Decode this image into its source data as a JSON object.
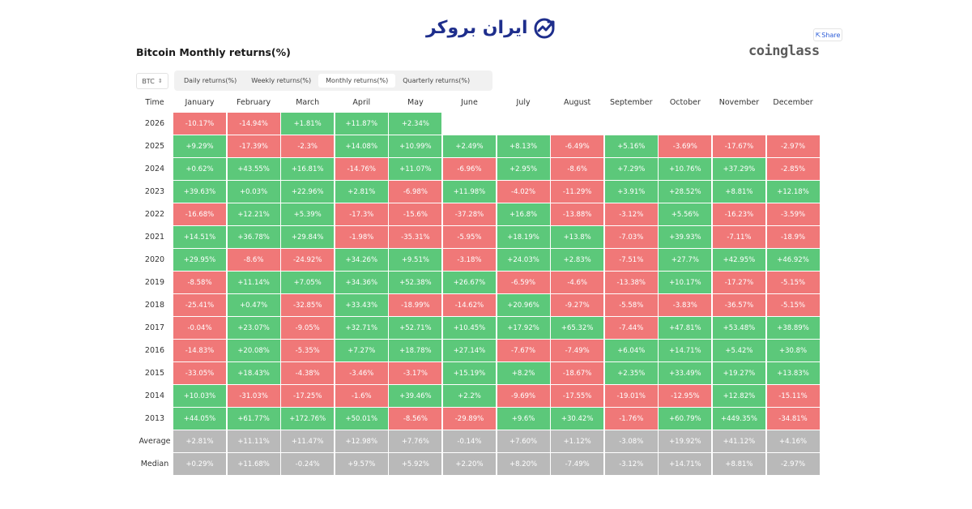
{
  "brand": {
    "name": "ایران بروکر"
  },
  "share_label": "Share",
  "page": {
    "title": "Bitcoin Monthly returns(%)",
    "provider": "coinglass"
  },
  "asset_selector": {
    "value": "BTC"
  },
  "tabs": [
    {
      "label": "Daily returns(%)",
      "active": false
    },
    {
      "label": "Weekly returns(%)",
      "active": false
    },
    {
      "label": "Monthly returns(%)",
      "active": true
    },
    {
      "label": "Quarterly returns(%)",
      "active": false
    }
  ],
  "colors": {
    "positive": "#5cc87a",
    "negative": "#f07878",
    "summary": "#b9b9b9",
    "brand": "#1e2e8c"
  },
  "table": {
    "columns": [
      "Time",
      "January",
      "February",
      "March",
      "April",
      "May",
      "June",
      "July",
      "August",
      "September",
      "October",
      "November",
      "December"
    ],
    "rows": [
      {
        "label": "2026",
        "values": [
          "-10.17%",
          "-14.94%",
          "+1.81%",
          "+11.87%",
          "+2.34%",
          "",
          "",
          "",
          "",
          "",
          "",
          ""
        ]
      },
      {
        "label": "2025",
        "values": [
          "+9.29%",
          "-17.39%",
          "-2.3%",
          "+14.08%",
          "+10.99%",
          "+2.49%",
          "+8.13%",
          "-6.49%",
          "+5.16%",
          "-3.69%",
          "-17.67%",
          "-2.97%"
        ]
      },
      {
        "label": "2024",
        "values": [
          "+0.62%",
          "+43.55%",
          "+16.81%",
          "-14.76%",
          "+11.07%",
          "-6.96%",
          "+2.95%",
          "-8.6%",
          "+7.29%",
          "+10.76%",
          "+37.29%",
          "-2.85%"
        ]
      },
      {
        "label": "2023",
        "values": [
          "+39.63%",
          "+0.03%",
          "+22.96%",
          "+2.81%",
          "-6.98%",
          "+11.98%",
          "-4.02%",
          "-11.29%",
          "+3.91%",
          "+28.52%",
          "+8.81%",
          "+12.18%"
        ]
      },
      {
        "label": "2022",
        "values": [
          "-16.68%",
          "+12.21%",
          "+5.39%",
          "-17.3%",
          "-15.6%",
          "-37.28%",
          "+16.8%",
          "-13.88%",
          "-3.12%",
          "+5.56%",
          "-16.23%",
          "-3.59%"
        ]
      },
      {
        "label": "2021",
        "values": [
          "+14.51%",
          "+36.78%",
          "+29.84%",
          "-1.98%",
          "-35.31%",
          "-5.95%",
          "+18.19%",
          "+13.8%",
          "-7.03%",
          "+39.93%",
          "-7.11%",
          "-18.9%"
        ]
      },
      {
        "label": "2020",
        "values": [
          "+29.95%",
          "-8.6%",
          "-24.92%",
          "+34.26%",
          "+9.51%",
          "-3.18%",
          "+24.03%",
          "+2.83%",
          "-7.51%",
          "+27.7%",
          "+42.95%",
          "+46.92%"
        ]
      },
      {
        "label": "2019",
        "values": [
          "-8.58%",
          "+11.14%",
          "+7.05%",
          "+34.36%",
          "+52.38%",
          "+26.67%",
          "-6.59%",
          "-4.6%",
          "-13.38%",
          "+10.17%",
          "-17.27%",
          "-5.15%"
        ]
      },
      {
        "label": "2018",
        "values": [
          "-25.41%",
          "+0.47%",
          "-32.85%",
          "+33.43%",
          "-18.99%",
          "-14.62%",
          "+20.96%",
          "-9.27%",
          "-5.58%",
          "-3.83%",
          "-36.57%",
          "-5.15%"
        ]
      },
      {
        "label": "2017",
        "values": [
          "-0.04%",
          "+23.07%",
          "-9.05%",
          "+32.71%",
          "+52.71%",
          "+10.45%",
          "+17.92%",
          "+65.32%",
          "-7.44%",
          "+47.81%",
          "+53.48%",
          "+38.89%"
        ]
      },
      {
        "label": "2016",
        "values": [
          "-14.83%",
          "+20.08%",
          "-5.35%",
          "+7.27%",
          "+18.78%",
          "+27.14%",
          "-7.67%",
          "-7.49%",
          "+6.04%",
          "+14.71%",
          "+5.42%",
          "+30.8%"
        ]
      },
      {
        "label": "2015",
        "values": [
          "-33.05%",
          "+18.43%",
          "-4.38%",
          "-3.46%",
          "-3.17%",
          "+15.19%",
          "+8.2%",
          "-18.67%",
          "+2.35%",
          "+33.49%",
          "+19.27%",
          "+13.83%"
        ]
      },
      {
        "label": "2014",
        "values": [
          "+10.03%",
          "-31.03%",
          "-17.25%",
          "-1.6%",
          "+39.46%",
          "+2.2%",
          "-9.69%",
          "-17.55%",
          "-19.01%",
          "-12.95%",
          "+12.82%",
          "-15.11%"
        ]
      },
      {
        "label": "2013",
        "values": [
          "+44.05%",
          "+61.77%",
          "+172.76%",
          "+50.01%",
          "-8.56%",
          "-29.89%",
          "+9.6%",
          "+30.42%",
          "-1.76%",
          "+60.79%",
          "+449.35%",
          "-34.81%"
        ]
      }
    ],
    "summary_rows": [
      {
        "label": "Average",
        "values": [
          "+2.81%",
          "+11.11%",
          "+11.47%",
          "+12.98%",
          "+7.76%",
          "-0.14%",
          "+7.60%",
          "+1.12%",
          "-3.08%",
          "+19.92%",
          "+41.12%",
          "+4.16%"
        ]
      },
      {
        "label": "Median",
        "values": [
          "+0.29%",
          "+11.68%",
          "-0.24%",
          "+9.57%",
          "+5.92%",
          "+2.20%",
          "+8.20%",
          "-7.49%",
          "-3.12%",
          "+14.71%",
          "+8.81%",
          "-2.97%"
        ]
      }
    ]
  }
}
